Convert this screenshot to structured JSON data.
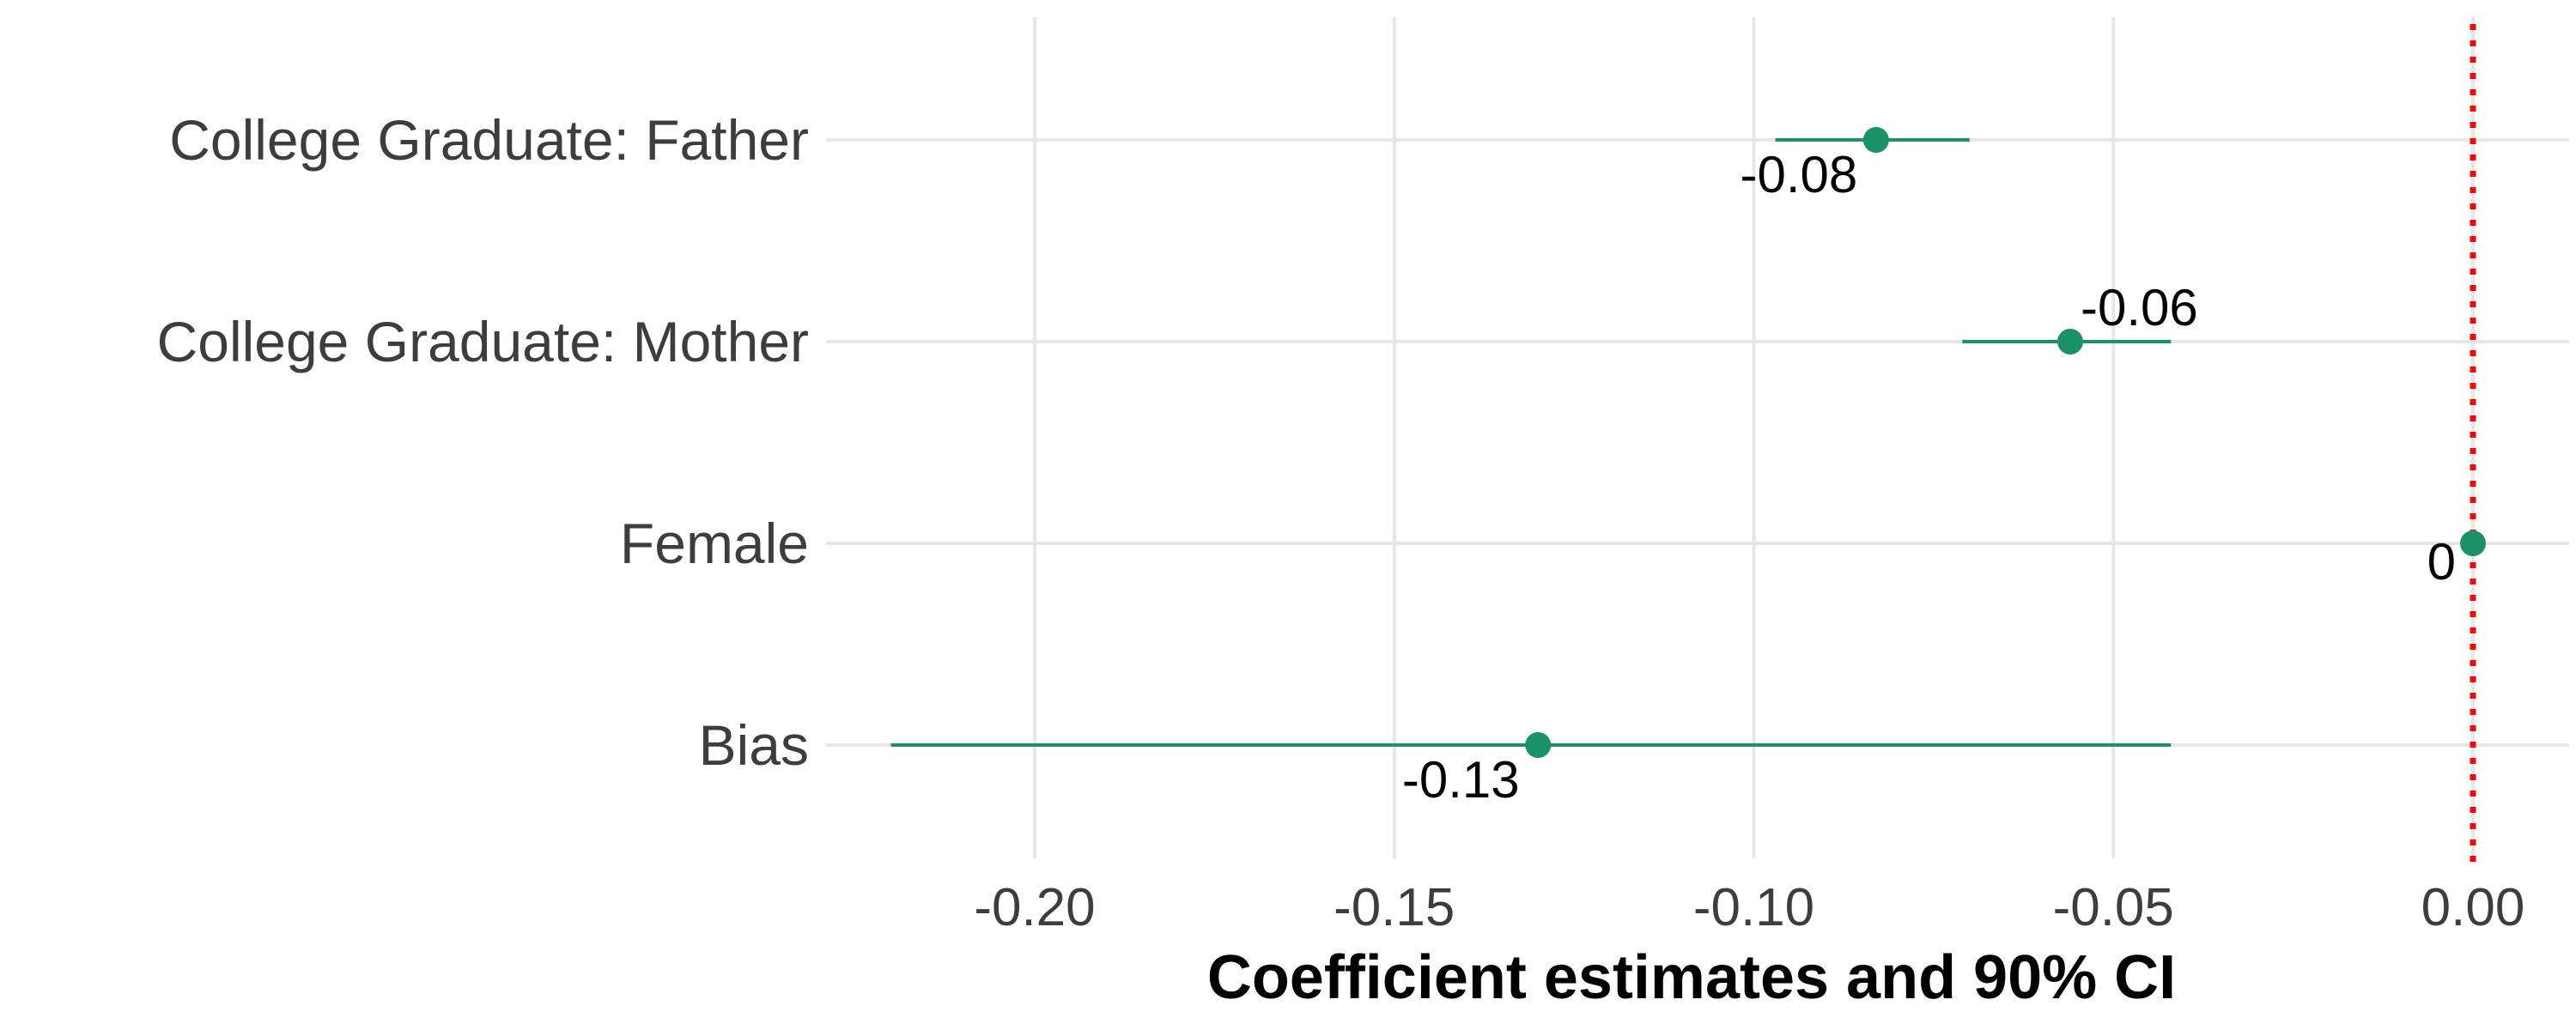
{
  "chart_data": {
    "type": "coefficient-plot",
    "xlabel": "Coefficient estimates and 90% CI",
    "xlim": [
      -0.229,
      0.013
    ],
    "x_ticks": [
      -0.2,
      -0.15,
      -0.1,
      -0.05,
      0.0
    ],
    "x_tick_labels": [
      "-0.20",
      "-0.15",
      "-0.10",
      "-0.05",
      "0.00"
    ],
    "reference_line": {
      "x": 0,
      "style": "dotted",
      "color": "#ff0000"
    },
    "grid": true,
    "colors": {
      "point": "#1b9166",
      "grid": "#e6e6e6",
      "reference": "#ff0000"
    },
    "categories": [
      "College Graduate: Father",
      "College Graduate: Mother",
      "Female",
      "Bias"
    ],
    "estimates": [
      {
        "term": "College Graduate: Father",
        "estimate": -0.083,
        "ci_low": -0.097,
        "ci_high": -0.07,
        "label": "-0.08",
        "label_pos": "below"
      },
      {
        "term": "College Graduate: Mother",
        "estimate": -0.056,
        "ci_low": -0.071,
        "ci_high": -0.042,
        "label": "-0.06",
        "label_pos": "above"
      },
      {
        "term": "Female",
        "estimate": 0.0,
        "ci_low": -0.001,
        "ci_high": 0.001,
        "label": "0",
        "label_pos": "below"
      },
      {
        "term": "Bias",
        "estimate": -0.13,
        "ci_low": -0.22,
        "ci_high": -0.042,
        "label": "-0.13",
        "label_pos": "below"
      }
    ]
  }
}
